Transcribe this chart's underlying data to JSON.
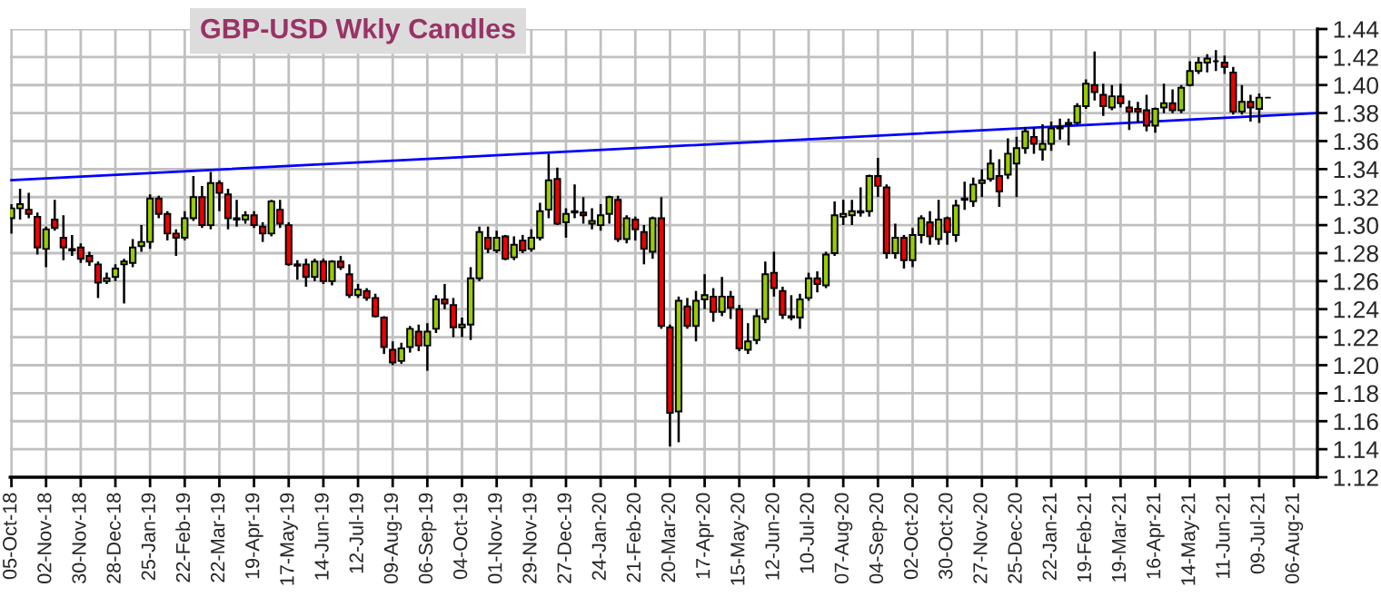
{
  "chart_data": {
    "type": "candlestick",
    "title": "GBP-USD Wkly Candles",
    "x": [
      "2018-10-05",
      "2018-10-12",
      "2018-10-19",
      "2018-10-26",
      "2018-11-02",
      "2018-11-09",
      "2018-11-16",
      "2018-11-23",
      "2018-11-30",
      "2018-12-07",
      "2018-12-14",
      "2018-12-21",
      "2018-12-28",
      "2019-01-04",
      "2019-01-11",
      "2019-01-18",
      "2019-01-25",
      "2019-02-01",
      "2019-02-08",
      "2019-02-15",
      "2019-02-22",
      "2019-03-01",
      "2019-03-08",
      "2019-03-15",
      "2019-03-22",
      "2019-03-29",
      "2019-04-05",
      "2019-04-12",
      "2019-04-19",
      "2019-04-26",
      "2019-05-03",
      "2019-05-10",
      "2019-05-17",
      "2019-05-24",
      "2019-05-31",
      "2019-06-07",
      "2019-06-14",
      "2019-06-21",
      "2019-06-28",
      "2019-07-05",
      "2019-07-12",
      "2019-07-19",
      "2019-07-26",
      "2019-08-02",
      "2019-08-09",
      "2019-08-16",
      "2019-08-23",
      "2019-08-30",
      "2019-09-06",
      "2019-09-13",
      "2019-09-20",
      "2019-09-27",
      "2019-10-04",
      "2019-10-11",
      "2019-10-18",
      "2019-10-25",
      "2019-11-01",
      "2019-11-08",
      "2019-11-15",
      "2019-11-22",
      "2019-11-29",
      "2019-12-06",
      "2019-12-13",
      "2019-12-20",
      "2019-12-27",
      "2020-01-03",
      "2020-01-10",
      "2020-01-17",
      "2020-01-24",
      "2020-01-31",
      "2020-02-07",
      "2020-02-14",
      "2020-02-21",
      "2020-02-28",
      "2020-03-06",
      "2020-03-13",
      "2020-03-20",
      "2020-03-27",
      "2020-04-03",
      "2020-04-10",
      "2020-04-17",
      "2020-04-24",
      "2020-05-01",
      "2020-05-08",
      "2020-05-15",
      "2020-05-22",
      "2020-05-29",
      "2020-06-05",
      "2020-06-12",
      "2020-06-19",
      "2020-06-26",
      "2020-07-03",
      "2020-07-10",
      "2020-07-17",
      "2020-07-24",
      "2020-07-31",
      "2020-08-07",
      "2020-08-14",
      "2020-08-21",
      "2020-08-28",
      "2020-09-04",
      "2020-09-11",
      "2020-09-18",
      "2020-09-25",
      "2020-10-02",
      "2020-10-09",
      "2020-10-16",
      "2020-10-23",
      "2020-10-30",
      "2020-11-06",
      "2020-11-13",
      "2020-11-20",
      "2020-11-27",
      "2020-12-04",
      "2020-12-11",
      "2020-12-18",
      "2020-12-25",
      "2021-01-01",
      "2021-01-08",
      "2021-01-15",
      "2021-01-22",
      "2021-01-29",
      "2021-02-05",
      "2021-02-12",
      "2021-02-19",
      "2021-02-26",
      "2021-03-05",
      "2021-03-12",
      "2021-03-19",
      "2021-03-26",
      "2021-04-02",
      "2021-04-09",
      "2021-04-16",
      "2021-04-23",
      "2021-04-30",
      "2021-05-07",
      "2021-05-14",
      "2021-05-21",
      "2021-05-28",
      "2021-06-04",
      "2021-06-11",
      "2021-06-18",
      "2021-06-25",
      "2021-07-02",
      "2021-07-09",
      "2021-07-16"
    ],
    "ohlc": [
      [
        1.305,
        1.315,
        1.294,
        1.312
      ],
      [
        1.312,
        1.326,
        1.304,
        1.315
      ],
      [
        1.311,
        1.323,
        1.305,
        1.308
      ],
      [
        1.306,
        1.309,
        1.279,
        1.284
      ],
      [
        1.283,
        1.299,
        1.27,
        1.297
      ],
      [
        1.304,
        1.318,
        1.296,
        1.298
      ],
      [
        1.291,
        1.307,
        1.275,
        1.284
      ],
      [
        1.283,
        1.293,
        1.278,
        1.282
      ],
      [
        1.284,
        1.287,
        1.273,
        1.276
      ],
      [
        1.278,
        1.281,
        1.271,
        1.274
      ],
      [
        1.272,
        1.274,
        1.248,
        1.259
      ],
      [
        1.26,
        1.266,
        1.258,
        1.262
      ],
      [
        1.263,
        1.272,
        1.26,
        1.269
      ],
      [
        1.272,
        1.276,
        1.244,
        1.274
      ],
      [
        1.273,
        1.29,
        1.27,
        1.284
      ],
      [
        1.285,
        1.3,
        1.281,
        1.288
      ],
      [
        1.288,
        1.322,
        1.283,
        1.319
      ],
      [
        1.319,
        1.321,
        1.305,
        1.308
      ],
      [
        1.308,
        1.31,
        1.289,
        1.294
      ],
      [
        1.294,
        1.297,
        1.278,
        1.291
      ],
      [
        1.291,
        1.31,
        1.289,
        1.305
      ],
      [
        1.305,
        1.335,
        1.303,
        1.32
      ],
      [
        1.32,
        1.328,
        1.298,
        1.3
      ],
      [
        1.3,
        1.338,
        1.297,
        1.33
      ],
      [
        1.33,
        1.332,
        1.31,
        1.323
      ],
      [
        1.322,
        1.326,
        1.297,
        1.305
      ],
      [
        1.304,
        1.318,
        1.299,
        1.305
      ],
      [
        1.304,
        1.31,
        1.301,
        1.307
      ],
      [
        1.307,
        1.31,
        1.298,
        1.3
      ],
      [
        1.299,
        1.302,
        1.288,
        1.294
      ],
      [
        1.294,
        1.318,
        1.292,
        1.317
      ],
      [
        1.311,
        1.318,
        1.298,
        1.301
      ],
      [
        1.3,
        1.302,
        1.271,
        1.272
      ],
      [
        1.272,
        1.275,
        1.261,
        1.271
      ],
      [
        1.272,
        1.276,
        1.256,
        1.263
      ],
      [
        1.263,
        1.276,
        1.26,
        1.274
      ],
      [
        1.274,
        1.276,
        1.258,
        1.26
      ],
      [
        1.26,
        1.275,
        1.257,
        1.274
      ],
      [
        1.274,
        1.278,
        1.268,
        1.27
      ],
      [
        1.265,
        1.272,
        1.248,
        1.25
      ],
      [
        1.25,
        1.258,
        1.248,
        1.254
      ],
      [
        1.253,
        1.255,
        1.246,
        1.248
      ],
      [
        1.248,
        1.251,
        1.234,
        1.235
      ],
      [
        1.234,
        1.235,
        1.208,
        1.213
      ],
      [
        1.211,
        1.217,
        1.2,
        1.202
      ],
      [
        1.203,
        1.216,
        1.201,
        1.212
      ],
      [
        1.213,
        1.228,
        1.209,
        1.226
      ],
      [
        1.224,
        1.229,
        1.21,
        1.214
      ],
      [
        1.214,
        1.23,
        1.196,
        1.224
      ],
      [
        1.226,
        1.25,
        1.223,
        1.247
      ],
      [
        1.247,
        1.258,
        1.24,
        1.244
      ],
      [
        1.243,
        1.248,
        1.22,
        1.227
      ],
      [
        1.227,
        1.234,
        1.22,
        1.229
      ],
      [
        1.229,
        1.27,
        1.218,
        1.262
      ],
      [
        1.262,
        1.299,
        1.26,
        1.295
      ],
      [
        1.291,
        1.299,
        1.28,
        1.283
      ],
      [
        1.282,
        1.296,
        1.28,
        1.291
      ],
      [
        1.292,
        1.293,
        1.275,
        1.276
      ],
      [
        1.277,
        1.292,
        1.275,
        1.286
      ],
      [
        1.289,
        1.293,
        1.28,
        1.282
      ],
      [
        1.283,
        1.297,
        1.281,
        1.291
      ],
      [
        1.291,
        1.316,
        1.289,
        1.31
      ],
      [
        1.311,
        1.351,
        1.305,
        1.332
      ],
      [
        1.333,
        1.341,
        1.3,
        1.301
      ],
      [
        1.302,
        1.312,
        1.291,
        1.308
      ],
      [
        1.309,
        1.329,
        1.305,
        1.31
      ],
      [
        1.309,
        1.32,
        1.301,
        1.307
      ],
      [
        1.301,
        1.312,
        1.297,
        1.303
      ],
      [
        1.3,
        1.315,
        1.296,
        1.307
      ],
      [
        1.308,
        1.321,
        1.301,
        1.32
      ],
      [
        1.318,
        1.321,
        1.288,
        1.29
      ],
      [
        1.29,
        1.307,
        1.287,
        1.305
      ],
      [
        1.304,
        1.306,
        1.289,
        1.297
      ],
      [
        1.295,
        1.3,
        1.272,
        1.283
      ],
      [
        1.281,
        1.306,
        1.276,
        1.305
      ],
      [
        1.305,
        1.32,
        1.226,
        1.228
      ],
      [
        1.227,
        1.229,
        1.142,
        1.166
      ],
      [
        1.167,
        1.249,
        1.145,
        1.246
      ],
      [
        1.242,
        1.248,
        1.226,
        1.228
      ],
      [
        1.228,
        1.253,
        1.217,
        1.246
      ],
      [
        1.247,
        1.265,
        1.24,
        1.25
      ],
      [
        1.249,
        1.255,
        1.231,
        1.238
      ],
      [
        1.238,
        1.263,
        1.235,
        1.249
      ],
      [
        1.249,
        1.253,
        1.233,
        1.241
      ],
      [
        1.24,
        1.243,
        1.21,
        1.212
      ],
      [
        1.211,
        1.23,
        1.208,
        1.217
      ],
      [
        1.218,
        1.24,
        1.215,
        1.235
      ],
      [
        1.233,
        1.274,
        1.23,
        1.265
      ],
      [
        1.266,
        1.281,
        1.249,
        1.255
      ],
      [
        1.253,
        1.256,
        1.233,
        1.236
      ],
      [
        1.235,
        1.25,
        1.232,
        1.234
      ],
      [
        1.234,
        1.251,
        1.226,
        1.247
      ],
      [
        1.248,
        1.266,
        1.246,
        1.262
      ],
      [
        1.262,
        1.267,
        1.252,
        1.258
      ],
      [
        1.257,
        1.281,
        1.255,
        1.279
      ],
      [
        1.28,
        1.317,
        1.278,
        1.307
      ],
      [
        1.306,
        1.318,
        1.3,
        1.308
      ],
      [
        1.307,
        1.318,
        1.3,
        1.31
      ],
      [
        1.309,
        1.327,
        1.306,
        1.31
      ],
      [
        1.31,
        1.336,
        1.306,
        1.335
      ],
      [
        1.335,
        1.348,
        1.32,
        1.328
      ],
      [
        1.327,
        1.329,
        1.276,
        1.28
      ],
      [
        1.28,
        1.301,
        1.276,
        1.291
      ],
      [
        1.291,
        1.293,
        1.269,
        1.275
      ],
      [
        1.275,
        1.298,
        1.27,
        1.293
      ],
      [
        1.293,
        1.307,
        1.287,
        1.305
      ],
      [
        1.302,
        1.31,
        1.286,
        1.292
      ],
      [
        1.29,
        1.318,
        1.286,
        1.304
      ],
      [
        1.305,
        1.306,
        1.286,
        1.295
      ],
      [
        1.293,
        1.318,
        1.288,
        1.314
      ],
      [
        1.318,
        1.331,
        1.311,
        1.319
      ],
      [
        1.317,
        1.334,
        1.313,
        1.329
      ],
      [
        1.33,
        1.34,
        1.32,
        1.332
      ],
      [
        1.333,
        1.354,
        1.331,
        1.344
      ],
      [
        1.335,
        1.347,
        1.313,
        1.324
      ],
      [
        1.336,
        1.362,
        1.333,
        1.351
      ],
      [
        1.344,
        1.363,
        1.32,
        1.355
      ],
      [
        1.355,
        1.37,
        1.351,
        1.367
      ],
      [
        1.363,
        1.37,
        1.351,
        1.358
      ],
      [
        1.354,
        1.372,
        1.346,
        1.358
      ],
      [
        1.358,
        1.374,
        1.353,
        1.369
      ],
      [
        1.369,
        1.376,
        1.361,
        1.37
      ],
      [
        1.372,
        1.376,
        1.357,
        1.373
      ],
      [
        1.373,
        1.387,
        1.372,
        1.385
      ],
      [
        1.385,
        1.404,
        1.383,
        1.401
      ],
      [
        1.4,
        1.424,
        1.389,
        1.395
      ],
      [
        1.393,
        1.401,
        1.378,
        1.385
      ],
      [
        1.384,
        1.4,
        1.382,
        1.392
      ],
      [
        1.392,
        1.401,
        1.384,
        1.387
      ],
      [
        1.384,
        1.389,
        1.368,
        1.381
      ],
      [
        1.383,
        1.388,
        1.373,
        1.381
      ],
      [
        1.382,
        1.393,
        1.367,
        1.371
      ],
      [
        1.371,
        1.384,
        1.366,
        1.383
      ],
      [
        1.384,
        1.401,
        1.38,
        1.387
      ],
      [
        1.387,
        1.397,
        1.38,
        1.382
      ],
      [
        1.382,
        1.4,
        1.38,
        1.398
      ],
      [
        1.4,
        1.417,
        1.399,
        1.41
      ],
      [
        1.41,
        1.42,
        1.408,
        1.416
      ],
      [
        1.416,
        1.422,
        1.409,
        1.419
      ],
      [
        1.417,
        1.425,
        1.41,
        1.417
      ],
      [
        1.416,
        1.421,
        1.408,
        1.413
      ],
      [
        1.409,
        1.413,
        1.379,
        1.381
      ],
      [
        1.381,
        1.4,
        1.379,
        1.388
      ],
      [
        1.388,
        1.393,
        1.374,
        1.384
      ],
      [
        1.383,
        1.394,
        1.373,
        1.391
      ],
      [
        1.391,
        1.391,
        1.391,
        1.391
      ]
    ],
    "series": [
      {
        "type": "line",
        "x": [
          "2018-10-04",
          "2021-08-25"
        ],
        "values": [
          1.332,
          1.38
        ],
        "color": "#0000ff"
      }
    ],
    "xlim": [
      "2018-10-04",
      "2021-08-25"
    ],
    "xticks": [
      {
        "value": "2018-10-05",
        "label": "05-Oct-18"
      },
      {
        "value": "2018-11-02",
        "label": "02-Nov-18"
      },
      {
        "value": "2018-11-30",
        "label": "30-Nov-18"
      },
      {
        "value": "2018-12-28",
        "label": "28-Dec-18"
      },
      {
        "value": "2019-01-25",
        "label": "25-Jan-19"
      },
      {
        "value": "2019-02-22",
        "label": "22-Feb-19"
      },
      {
        "value": "2019-03-22",
        "label": "22-Mar-19"
      },
      {
        "value": "2019-04-19",
        "label": "19-Apr-19"
      },
      {
        "value": "2019-05-17",
        "label": "17-May-19"
      },
      {
        "value": "2019-06-14",
        "label": "14-Jun-19"
      },
      {
        "value": "2019-07-12",
        "label": "12-Jul-19"
      },
      {
        "value": "2019-08-09",
        "label": "09-Aug-19"
      },
      {
        "value": "2019-09-06",
        "label": "06-Sep-19"
      },
      {
        "value": "2019-10-04",
        "label": "04-Oct-19"
      },
      {
        "value": "2019-11-01",
        "label": "01-Nov-19"
      },
      {
        "value": "2019-11-29",
        "label": "29-Nov-19"
      },
      {
        "value": "2019-12-27",
        "label": "27-Dec-19"
      },
      {
        "value": "2020-01-24",
        "label": "24-Jan-20"
      },
      {
        "value": "2020-02-21",
        "label": "21-Feb-20"
      },
      {
        "value": "2020-03-20",
        "label": "20-Mar-20"
      },
      {
        "value": "2020-04-17",
        "label": "17-Apr-20"
      },
      {
        "value": "2020-05-15",
        "label": "15-May-20"
      },
      {
        "value": "2020-06-12",
        "label": "12-Jun-20"
      },
      {
        "value": "2020-07-10",
        "label": "10-Jul-20"
      },
      {
        "value": "2020-08-07",
        "label": "07-Aug-20"
      },
      {
        "value": "2020-09-04",
        "label": "04-Sep-20"
      },
      {
        "value": "2020-10-02",
        "label": "02-Oct-20"
      },
      {
        "value": "2020-10-30",
        "label": "30-Oct-20"
      },
      {
        "value": "2020-11-27",
        "label": "27-Nov-20"
      },
      {
        "value": "2020-12-25",
        "label": "25-Dec-20"
      },
      {
        "value": "2021-01-22",
        "label": "22-Jan-21"
      },
      {
        "value": "2021-02-19",
        "label": "19-Feb-21"
      },
      {
        "value": "2021-03-19",
        "label": "19-Mar-21"
      },
      {
        "value": "2021-04-16",
        "label": "16-Apr-21"
      },
      {
        "value": "2021-05-14",
        "label": "14-May-21"
      },
      {
        "value": "2021-06-11",
        "label": "11-Jun-21"
      },
      {
        "value": "2021-07-09",
        "label": "09-Jul-21"
      },
      {
        "value": "2021-08-06",
        "label": "06-Aug-21"
      }
    ],
    "ylim": [
      1.12,
      1.44
    ],
    "yticks": [
      1.12,
      1.14,
      1.16,
      1.18,
      {
        "value": 1.2,
        "label": "1.20"
      },
      1.22,
      1.24,
      1.26,
      1.28,
      {
        "value": 1.3,
        "label": "1.30"
      },
      1.32,
      1.34,
      1.36,
      1.38,
      {
        "value": 1.4,
        "label": "1.40"
      },
      1.42,
      1.44
    ],
    "grid": true
  }
}
